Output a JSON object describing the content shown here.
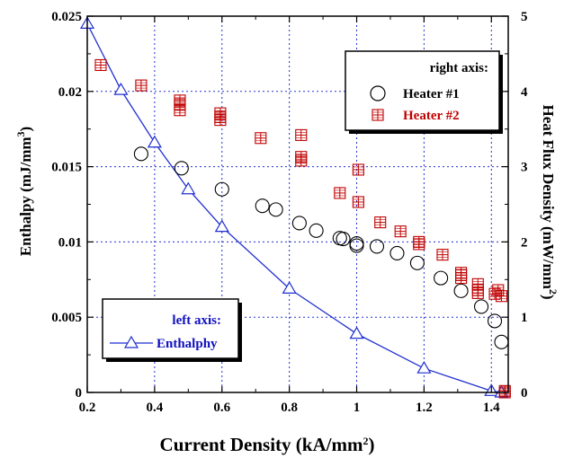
{
  "chart_data": {
    "type": "scatter",
    "xlabel": "Current Density (kA/mm²)",
    "ylabel_left": "Enthalpy (mJ/mm³)",
    "ylabel_right": "Heat Flux Density (mW/mm²)",
    "xlim": [
      0.2,
      1.45
    ],
    "ylim_left": [
      0,
      0.025
    ],
    "ylim_right": [
      0,
      5
    ],
    "x_ticks": [
      "0.2",
      "0.4",
      "0.6",
      "0.8",
      "1",
      "1.2",
      "1.4"
    ],
    "y_left_ticks": [
      "0",
      "0.005",
      "0.01",
      "0.015",
      "0.02",
      "0.025"
    ],
    "y_right_ticks": [
      "0",
      "1",
      "2",
      "3",
      "4",
      "5"
    ],
    "grid": true,
    "legend_right": {
      "title": "right axis:",
      "items": [
        "Heater #1",
        "Heater #2"
      ],
      "placement": "top-right"
    },
    "legend_left": {
      "title": "left axis:",
      "items": [
        "Enthalphy"
      ],
      "placement": "bottom-left"
    },
    "colors": {
      "enthalpy": "#1f2fd0",
      "heater2": "#c00000",
      "heater1": "#000000",
      "grid": "#2233cc",
      "legend_left_title": "#1010c0",
      "legend_right_title": "#000000"
    },
    "series": [
      {
        "name": "Enthalphy",
        "axis": "left",
        "marker": "triangle",
        "line": true,
        "x": [
          0.2,
          0.3,
          0.4,
          0.5,
          0.6,
          0.8,
          1.0,
          1.2,
          1.4,
          1.43
        ],
        "y": [
          0.0245,
          0.0201,
          0.0166,
          0.0135,
          0.011,
          0.0069,
          0.0039,
          0.0016,
          0.0001,
          0.0
        ]
      },
      {
        "name": "Heater #1",
        "axis": "right",
        "marker": "circle",
        "line": false,
        "x": [
          0.36,
          0.48,
          0.6,
          0.72,
          0.76,
          0.83,
          0.88,
          0.95,
          0.96,
          1.0,
          1.0,
          1.06,
          1.12,
          1.18,
          1.25,
          1.31,
          1.37,
          1.41,
          1.43
        ],
        "y": [
          3.17,
          2.98,
          2.7,
          2.48,
          2.43,
          2.25,
          2.15,
          2.05,
          2.04,
          1.98,
          1.95,
          1.94,
          1.85,
          1.72,
          1.52,
          1.35,
          1.14,
          0.95,
          0.67
        ]
      },
      {
        "name": "Heater #2",
        "axis": "right",
        "marker": "square-cross",
        "line": false,
        "x": [
          0.24,
          0.36,
          0.475,
          0.475,
          0.475,
          0.595,
          0.595,
          0.595,
          0.715,
          0.835,
          0.835,
          0.835,
          0.95,
          1.005,
          1.005,
          1.07,
          1.13,
          1.185,
          1.185,
          1.255,
          1.31,
          1.31,
          1.31,
          1.36,
          1.36,
          1.36,
          1.41,
          1.42,
          1.43,
          1.44,
          1.44
        ],
        "y": [
          4.35,
          4.08,
          3.88,
          3.75,
          3.83,
          3.71,
          3.62,
          3.66,
          3.38,
          3.42,
          3.08,
          3.13,
          2.65,
          2.96,
          2.53,
          2.26,
          2.14,
          2.0,
          1.97,
          1.83,
          1.59,
          1.52,
          1.56,
          1.44,
          1.36,
          1.32,
          1.31,
          1.36,
          1.28,
          0.0,
          0.02
        ]
      }
    ]
  }
}
